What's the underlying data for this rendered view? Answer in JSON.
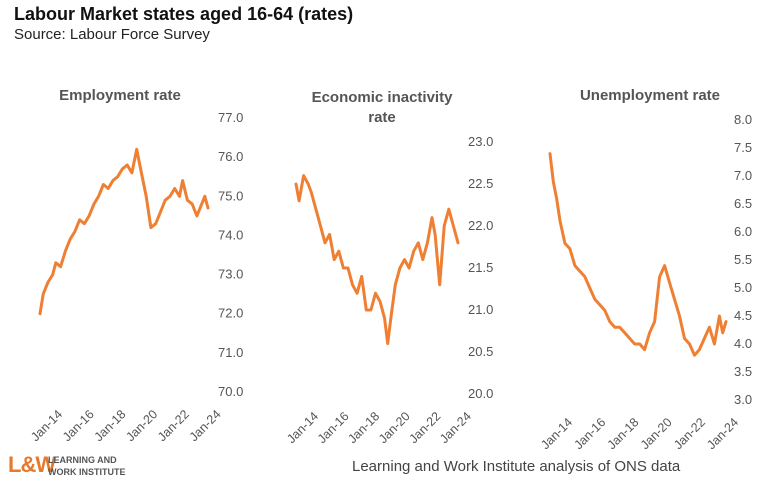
{
  "header": {
    "title": "Labour Market states aged 16-64 (rates)",
    "subtitle": "Source: Labour Force Survey"
  },
  "footer": {
    "source_note": "Learning and Work Institute analysis of ONS data",
    "logo_mark": "L&W",
    "logo_line1": "LEARNING AND",
    "logo_line2": "WORK INSTITUTE"
  },
  "colors": {
    "series": "#ef7f33",
    "text": "#555555"
  },
  "chart_data": [
    {
      "type": "line",
      "title": "Employment rate",
      "ylim": [
        70.0,
        77.0
      ],
      "yticks": [
        "70.0",
        "71.0",
        "72.0",
        "73.0",
        "74.0",
        "75.0",
        "76.0",
        "77.0"
      ],
      "xticks": [
        "Jan-14",
        "Jan-16",
        "Jan-18",
        "Jan-20",
        "Jan-22",
        "Jan-24"
      ],
      "xrange": [
        2014.0,
        2024.6
      ],
      "x": [
        2014.0,
        2014.2,
        2014.5,
        2014.8,
        2015.0,
        2015.3,
        2015.6,
        2015.9,
        2016.2,
        2016.5,
        2016.8,
        2017.1,
        2017.4,
        2017.7,
        2018.0,
        2018.3,
        2018.6,
        2018.9,
        2019.2,
        2019.5,
        2019.8,
        2020.1,
        2020.4,
        2020.7,
        2021.0,
        2021.3,
        2021.6,
        2021.9,
        2022.2,
        2022.5,
        2022.8,
        2023.0,
        2023.3,
        2023.6,
        2023.9,
        2024.2,
        2024.4,
        2024.6
      ],
      "y": [
        72.0,
        72.5,
        72.8,
        73.0,
        73.3,
        73.2,
        73.6,
        73.9,
        74.1,
        74.4,
        74.3,
        74.5,
        74.8,
        75.0,
        75.3,
        75.2,
        75.4,
        75.5,
        75.7,
        75.8,
        75.6,
        76.2,
        75.6,
        75.0,
        74.2,
        74.3,
        74.6,
        74.9,
        75.0,
        75.2,
        75.0,
        75.4,
        74.9,
        74.8,
        74.5,
        74.8,
        75.0,
        74.7
      ]
    },
    {
      "type": "line",
      "title": "Economic inactivity rate",
      "ylim": [
        20.0,
        23.0
      ],
      "yticks": [
        "20.0",
        "20.5",
        "21.0",
        "21.5",
        "22.0",
        "22.5",
        "23.0"
      ],
      "xticks": [
        "Jan-14",
        "Jan-16",
        "Jan-18",
        "Jan-20",
        "Jan-22",
        "Jan-24"
      ],
      "xrange": [
        2014.0,
        2024.6
      ],
      "x": [
        2014.0,
        2014.2,
        2014.5,
        2014.8,
        2015.0,
        2015.3,
        2015.6,
        2015.9,
        2016.2,
        2016.5,
        2016.8,
        2017.1,
        2017.4,
        2017.7,
        2018.0,
        2018.3,
        2018.6,
        2018.9,
        2019.2,
        2019.5,
        2019.8,
        2020.0,
        2020.2,
        2020.5,
        2020.8,
        2021.1,
        2021.4,
        2021.7,
        2022.0,
        2022.3,
        2022.6,
        2022.9,
        2023.1,
        2023.4,
        2023.7,
        2024.0,
        2024.3,
        2024.6
      ],
      "y": [
        22.5,
        22.3,
        22.6,
        22.5,
        22.4,
        22.2,
        22.0,
        21.8,
        21.9,
        21.6,
        21.7,
        21.5,
        21.5,
        21.3,
        21.2,
        21.4,
        21.0,
        21.0,
        21.2,
        21.1,
        20.9,
        20.6,
        20.9,
        21.3,
        21.5,
        21.6,
        21.5,
        21.7,
        21.8,
        21.6,
        21.8,
        22.1,
        21.9,
        21.3,
        22.0,
        22.2,
        22.0,
        21.8
      ]
    },
    {
      "type": "line",
      "title": "Unemployment rate",
      "ylim": [
        3.0,
        8.0
      ],
      "yticks": [
        "3.0",
        "3.5",
        "4.0",
        "4.5",
        "5.0",
        "5.5",
        "6.0",
        "6.5",
        "7.0",
        "7.5",
        "8.0"
      ],
      "xticks": [
        "Jan-14",
        "Jan-16",
        "Jan-18",
        "Jan-20",
        "Jan-22",
        "Jan-24"
      ],
      "xrange": [
        2014.0,
        2024.6
      ],
      "x": [
        2014.0,
        2014.2,
        2014.4,
        2014.6,
        2014.9,
        2015.2,
        2015.5,
        2015.8,
        2016.1,
        2016.4,
        2016.7,
        2017.0,
        2017.3,
        2017.6,
        2017.9,
        2018.2,
        2018.5,
        2018.8,
        2019.1,
        2019.4,
        2019.7,
        2020.0,
        2020.3,
        2020.6,
        2020.9,
        2021.2,
        2021.5,
        2021.8,
        2022.1,
        2022.4,
        2022.7,
        2023.0,
        2023.3,
        2023.6,
        2023.9,
        2024.2,
        2024.4,
        2024.6
      ],
      "y": [
        7.4,
        6.9,
        6.6,
        6.2,
        5.8,
        5.7,
        5.4,
        5.3,
        5.2,
        5.0,
        4.8,
        4.7,
        4.6,
        4.4,
        4.3,
        4.3,
        4.2,
        4.1,
        4.0,
        4.0,
        3.9,
        4.2,
        4.4,
        5.2,
        5.4,
        5.1,
        4.8,
        4.5,
        4.1,
        4.0,
        3.8,
        3.9,
        4.1,
        4.3,
        4.0,
        4.5,
        4.2,
        4.4
      ]
    }
  ]
}
